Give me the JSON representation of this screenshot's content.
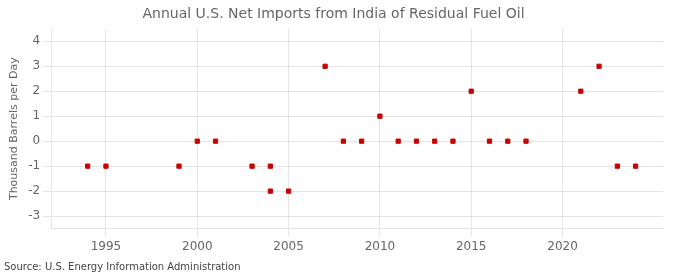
{
  "chart_data": {
    "type": "scatter",
    "title": "Annual U.S. Net Imports from India of Residual Fuel Oil",
    "y_label": "Thousand Barrels per Day",
    "annotation": "Source: U.S. Energy Information Administration",
    "x": [
      1994,
      1995,
      1999,
      2000,
      2001,
      2003,
      2004,
      2004,
      2005,
      2007,
      2008,
      2009,
      2010,
      2011,
      2012,
      2013,
      2014,
      2015,
      2016,
      2017,
      2018,
      2021,
      2022,
      2023,
      2024
    ],
    "values": [
      -1,
      -1,
      -1,
      0,
      0,
      -1,
      -1,
      -2,
      -2,
      3,
      0,
      0,
      1,
      0,
      0,
      0,
      0,
      2,
      0,
      0,
      0,
      2,
      3,
      -1,
      -1
    ],
    "color": "#CC0000",
    "marker": "square",
    "xlim": [
      1992,
      2025.5
    ],
    "ylim": [
      -3.5,
      4.5
    ],
    "xticks": [
      1995,
      2000,
      2005,
      2010,
      2015,
      2020
    ],
    "yticks": [
      -3,
      -2,
      -1,
      0,
      1,
      2,
      3,
      4
    ],
    "grid": true
  }
}
